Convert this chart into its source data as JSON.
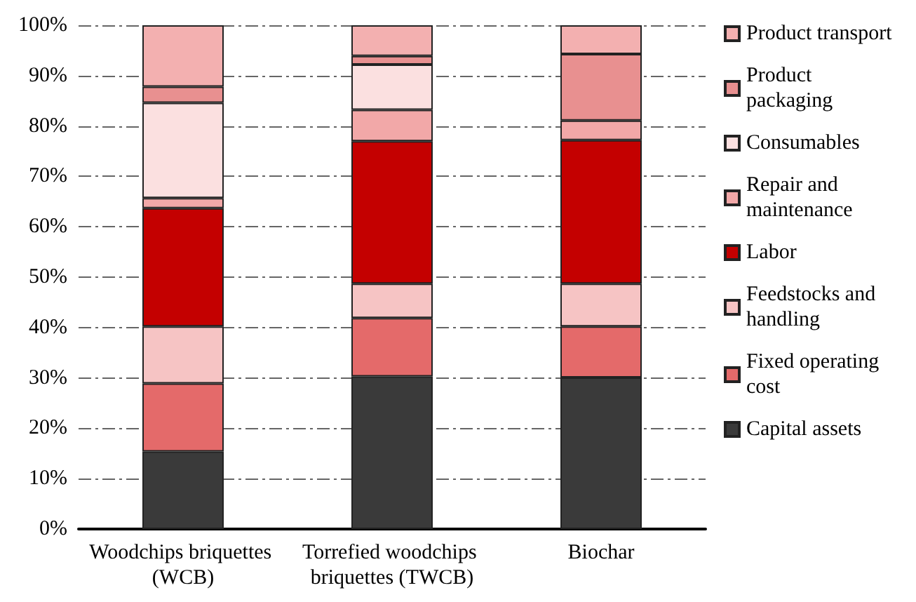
{
  "chart_data": {
    "type": "bar",
    "stacked": true,
    "categories": [
      "Woodchips briquettes (WCB)",
      "Torrefied woodchips briquettes (TWCB)",
      "Biochar"
    ],
    "series": [
      {
        "name": "Capital assets",
        "color": "#3a3a3a",
        "values": [
          15.4,
          30.3,
          30.1
        ]
      },
      {
        "name": "Fixed operating cost",
        "color": "#e46a6a",
        "values": [
          13.5,
          11.6,
          10.1
        ]
      },
      {
        "name": "Feedstocks and handling",
        "color": "#f6c4c4",
        "values": [
          11.3,
          6.8,
          8.5
        ]
      },
      {
        "name": "Labor",
        "color": "#c40000",
        "values": [
          23.5,
          28.3,
          28.5
        ]
      },
      {
        "name": "Repair and maintenance",
        "color": "#f2a8a8",
        "values": [
          2.0,
          6.2,
          3.9
        ]
      },
      {
        "name": "Consumables",
        "color": "#fbe0e0",
        "values": [
          18.9,
          9.0,
          null
        ]
      },
      {
        "name": "Product packaging",
        "color": "#e89090",
        "values": [
          3.2,
          1.7,
          13.2
        ]
      },
      {
        "name": "Product transport",
        "color": "#f3b0b0",
        "values": [
          12.2,
          6.1,
          5.7
        ]
      }
    ],
    "ylim": [
      0,
      100
    ],
    "yticks": [
      {
        "value": 0,
        "label": "0%"
      },
      {
        "value": 10,
        "label": "10%"
      },
      {
        "value": 20,
        "label": "20%"
      },
      {
        "value": 30,
        "label": "30%"
      },
      {
        "value": 40,
        "label": "40%"
      },
      {
        "value": 50,
        "label": "50%"
      },
      {
        "value": 60,
        "label": "60%"
      },
      {
        "value": 70,
        "label": "70%"
      },
      {
        "value": 80,
        "label": "80%"
      },
      {
        "value": 90,
        "label": "90%"
      },
      {
        "value": 100,
        "label": "100%"
      }
    ],
    "grid": "y",
    "legend": "right"
  }
}
